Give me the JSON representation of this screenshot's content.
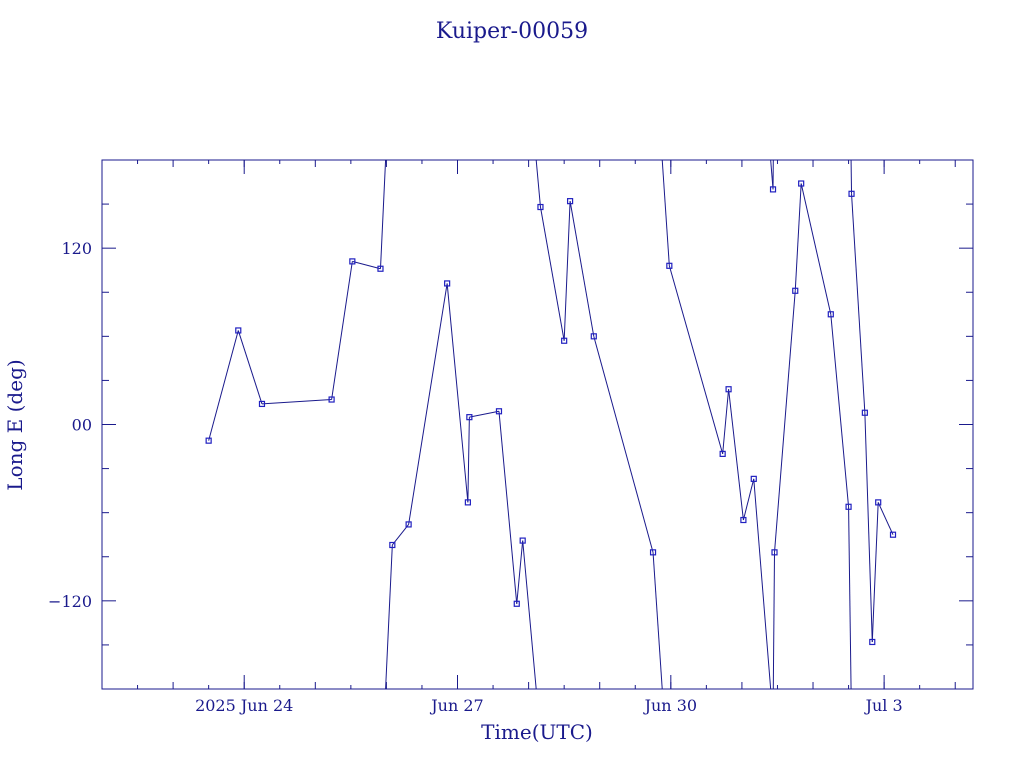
{
  "colors": {
    "ink": "#1a1a8c",
    "line": "#1a1a8c",
    "marker": "#2020c0",
    "background": "#ffffff"
  },
  "chart_data": {
    "type": "line",
    "title": "Kuiper-00059",
    "xlabel": "Time(UTC)",
    "ylabel": "Long E (deg)",
    "ylim": [
      -180,
      180
    ],
    "xlim": [
      "2025-06-22T00:00",
      "2025-07-04T06:00"
    ],
    "xticks": [
      {
        "label": "2025 Jun 24",
        "t": "2025-06-24T00:00"
      },
      {
        "label": "Jun 27",
        "t": "2025-06-27T00:00"
      },
      {
        "label": "Jun 30",
        "t": "2025-06-30T00:00"
      },
      {
        "label": "Jul  3",
        "t": "2025-07-03T00:00"
      }
    ],
    "yticks": [
      {
        "label": "120",
        "v": 120
      },
      {
        "label": "00",
        "v": 0
      },
      {
        "label": "−120",
        "v": -120
      }
    ],
    "grid": false,
    "legend": "none",
    "wrap_longitude": true,
    "points": [
      [
        "2025-06-23T12:00",
        -11
      ],
      [
        "2025-06-23T22:00",
        64
      ],
      [
        "2025-06-24T06:00",
        14
      ],
      [
        "2025-06-25T05:30",
        17
      ],
      [
        "2025-06-25T12:30",
        111
      ],
      [
        "2025-06-25T22:00",
        106
      ],
      [
        "2025-06-26T02:00",
        -82
      ],
      [
        "2025-06-26T07:30",
        -68
      ],
      [
        "2025-06-26T20:30",
        96
      ],
      [
        "2025-06-27T03:30",
        -53
      ],
      [
        "2025-06-27T04:00",
        5
      ],
      [
        "2025-06-27T14:00",
        9
      ],
      [
        "2025-06-27T20:00",
        -122
      ],
      [
        "2025-06-27T22:00",
        -79
      ],
      [
        "2025-06-28T04:00",
        148
      ],
      [
        "2025-06-28T12:00",
        57
      ],
      [
        "2025-06-28T14:00",
        152
      ],
      [
        "2025-06-28T22:00",
        60
      ],
      [
        "2025-06-29T18:00",
        -87
      ],
      [
        "2025-06-29T23:30",
        108
      ],
      [
        "2025-06-30T17:30",
        -20
      ],
      [
        "2025-06-30T19:30",
        24
      ],
      [
        "2025-07-01T00:30",
        -65
      ],
      [
        "2025-07-01T04:00",
        -37
      ],
      [
        "2025-07-01T10:30",
        160
      ],
      [
        "2025-07-01T11:00",
        -87
      ],
      [
        "2025-07-01T18:00",
        91
      ],
      [
        "2025-07-01T20:00",
        164
      ],
      [
        "2025-07-02T06:00",
        75
      ],
      [
        "2025-07-02T12:00",
        -56
      ],
      [
        "2025-07-02T13:00",
        157
      ],
      [
        "2025-07-02T17:30",
        8
      ],
      [
        "2025-07-02T20:00",
        -148
      ],
      [
        "2025-07-02T22:00",
        -53
      ],
      [
        "2025-07-03T03:00",
        -75
      ]
    ]
  }
}
